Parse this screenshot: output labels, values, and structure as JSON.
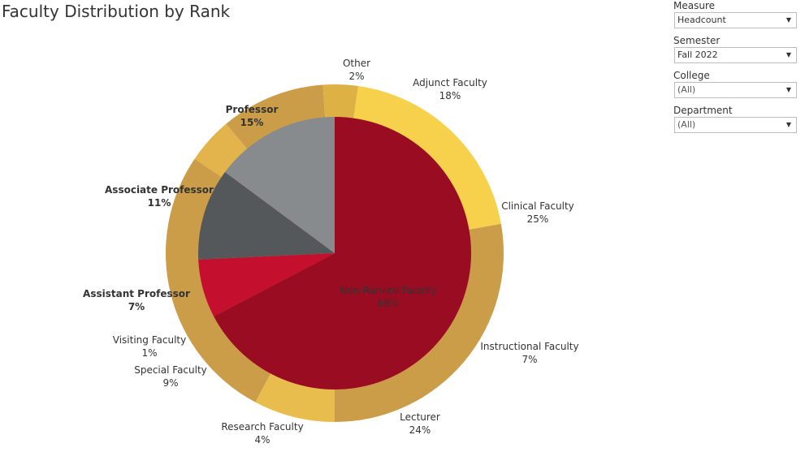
{
  "title": "Faculty Distribution by Rank",
  "filters": [
    {
      "label": "Measure",
      "value": "Headcount"
    },
    {
      "label": "Semester",
      "value": "Fall 2022"
    },
    {
      "label": "College",
      "value": "(All)"
    },
    {
      "label": "Department",
      "value": "(All)"
    }
  ],
  "chart_data": {
    "type": "pie",
    "inner": {
      "categories": [
        "Non-Ranked Faculty",
        "Assistant Professor",
        "Associate Professor",
        "Professor"
      ],
      "values": [
        68,
        7,
        11,
        15
      ],
      "labels": [
        "68%",
        "7%",
        "11%",
        "15%"
      ],
      "colors": [
        "#990c22",
        "#c4102e",
        "#55585a",
        "#888b8d"
      ]
    },
    "outer": {
      "categories": [
        "Other",
        "Adjunct Faculty",
        "Clinical Faculty",
        "Instructional Faculty",
        "Lecturer",
        "Research Faculty",
        "Special Faculty",
        "Visiting Faculty"
      ],
      "values": [
        2,
        18,
        25,
        7,
        24,
        4,
        9,
        1
      ],
      "labels": [
        "2%",
        "18%",
        "25%",
        "7%",
        "24%",
        "4%",
        "9%",
        "1%"
      ],
      "colors": [
        "#ddb144",
        "#f8d14c",
        "#cb9d49",
        "#e9bd4d",
        "#cb9d49",
        "#e2b44b",
        "#cb9d49",
        "#ddb144"
      ]
    }
  }
}
